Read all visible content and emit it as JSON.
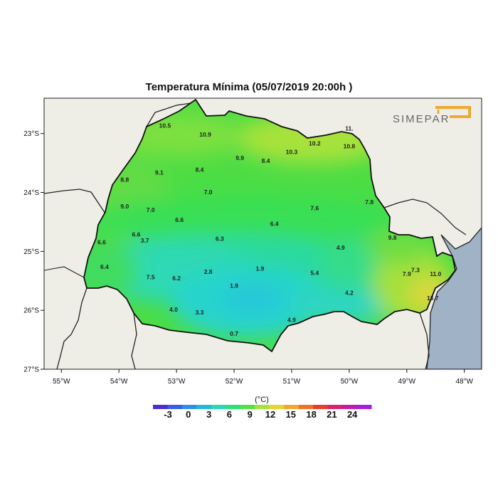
{
  "title": "Temperatura Mínima (05/07/2019 20:00h )",
  "logo_text": "SIMEPAR",
  "axes": {
    "x_ticks": [
      "55°W",
      "54°W",
      "53°W",
      "52°W",
      "51°W",
      "50°W",
      "49°W",
      "48°W"
    ],
    "y_ticks": [
      "23°S",
      "24°S",
      "25°S",
      "26°S",
      "27°S"
    ],
    "lon_range": [
      -55.3,
      -47.7
    ],
    "lat_range": [
      -27.0,
      -22.4
    ]
  },
  "colorbar": {
    "unit": "(°C)",
    "labels": [
      "-3",
      "0",
      "3",
      "6",
      "9",
      "12",
      "15",
      "18",
      "21",
      "24"
    ],
    "colors": [
      "#4a2fd0",
      "#3a5ce6",
      "#2f8fe8",
      "#22b9d9",
      "#28d8b4",
      "#2ee07a",
      "#55e040",
      "#a6e03a",
      "#e6d430",
      "#f0a830",
      "#ef7428",
      "#e83d2a",
      "#e0206a",
      "#c01ca8",
      "#a51ee0"
    ]
  },
  "map_values": [
    {
      "label": "10.5",
      "lon": -53.2,
      "lat": -22.9
    },
    {
      "label": "10.9",
      "lon": -52.5,
      "lat": -23.05
    },
    {
      "label": "11.",
      "lon": -50.0,
      "lat": -22.95
    },
    {
      "label": "10.2",
      "lon": -50.6,
      "lat": -23.2
    },
    {
      "label": "10.8",
      "lon": -50.0,
      "lat": -23.25
    },
    {
      "label": "10.3",
      "lon": -51.0,
      "lat": -23.35
    },
    {
      "label": "9.9",
      "lon": -51.9,
      "lat": -23.45
    },
    {
      "label": "8.4",
      "lon": -51.45,
      "lat": -23.5
    },
    {
      "label": "8.4",
      "lon": -52.6,
      "lat": -23.65
    },
    {
      "label": "9.1",
      "lon": -53.3,
      "lat": -23.7
    },
    {
      "label": "8.8",
      "lon": -53.9,
      "lat": -23.82
    },
    {
      "label": "7.0",
      "lon": -52.45,
      "lat": -24.03
    },
    {
      "label": "9.0",
      "lon": -53.9,
      "lat": -24.27
    },
    {
      "label": "7.0",
      "lon": -53.45,
      "lat": -24.33
    },
    {
      "label": "7.6",
      "lon": -50.6,
      "lat": -24.3
    },
    {
      "label": "7.8",
      "lon": -49.65,
      "lat": -24.2
    },
    {
      "label": "6.6",
      "lon": -52.95,
      "lat": -24.5
    },
    {
      "label": "6.4",
      "lon": -51.3,
      "lat": -24.57
    },
    {
      "label": "6.6",
      "lon": -53.7,
      "lat": -24.75
    },
    {
      "label": "3.7",
      "lon": -53.55,
      "lat": -24.85
    },
    {
      "label": "6.3",
      "lon": -52.25,
      "lat": -24.82
    },
    {
      "label": "6.6",
      "lon": -54.3,
      "lat": -24.88
    },
    {
      "label": "9.8",
      "lon": -49.25,
      "lat": -24.8
    },
    {
      "label": "4.9",
      "lon": -50.15,
      "lat": -24.97
    },
    {
      "label": "6.4",
      "lon": -54.25,
      "lat": -25.3
    },
    {
      "label": "2.8",
      "lon": -52.45,
      "lat": -25.38
    },
    {
      "label": "1.9",
      "lon": -51.55,
      "lat": -25.33
    },
    {
      "label": "5.4",
      "lon": -50.6,
      "lat": -25.4
    },
    {
      "label": "7.9",
      "lon": -49.0,
      "lat": -25.42
    },
    {
      "label": "7.3",
      "lon": -48.85,
      "lat": -25.35
    },
    {
      "label": "11.0",
      "lon": -48.5,
      "lat": -25.42
    },
    {
      "label": "7.5",
      "lon": -53.45,
      "lat": -25.47
    },
    {
      "label": "6.2",
      "lon": -53.0,
      "lat": -25.49
    },
    {
      "label": "1.9",
      "lon": -52.0,
      "lat": -25.62
    },
    {
      "label": "4.2",
      "lon": -50.0,
      "lat": -25.74
    },
    {
      "label": "13.7",
      "lon": -48.55,
      "lat": -25.83
    },
    {
      "label": "4.0",
      "lon": -53.05,
      "lat": -26.02
    },
    {
      "label": "3.3",
      "lon": -52.6,
      "lat": -26.07
    },
    {
      "label": "4.9",
      "lon": -51.0,
      "lat": -26.2
    },
    {
      "label": "0.7",
      "lon": -52.0,
      "lat": -26.43
    }
  ]
}
